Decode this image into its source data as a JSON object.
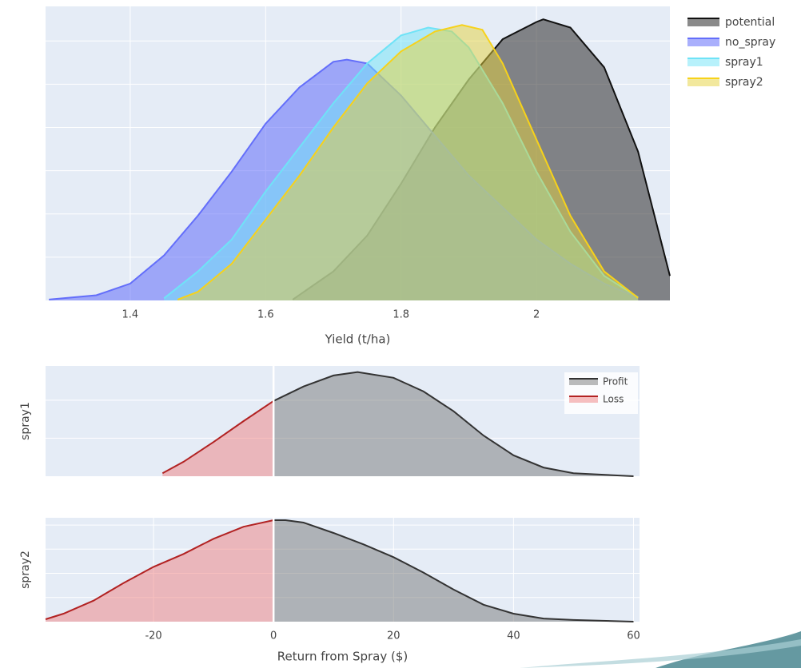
{
  "chart_data": [
    {
      "type": "area",
      "xlabel": "Yield (t/ha)",
      "xlim": [
        1.275,
        2.197
      ],
      "xticks": [
        1.4,
        1.6,
        1.8,
        2
      ],
      "ylim": [
        0,
        6.8
      ],
      "yticks": [
        1,
        2,
        3,
        4,
        5,
        6
      ],
      "ytick_labels": false,
      "grid": true,
      "legend": "outside-right",
      "series": [
        {
          "name": "potential",
          "color": "#111111",
          "fill": "rgba(60,60,60,0.6)",
          "x": [
            1.64,
            1.7,
            1.75,
            1.8,
            1.85,
            1.9,
            1.95,
            2.0,
            2.01,
            2.05,
            2.1,
            2.15,
            2.197
          ],
          "values": [
            0.02,
            0.67,
            1.5,
            2.7,
            4.0,
            5.11,
            6.04,
            6.44,
            6.5,
            6.31,
            5.39,
            3.44,
            0.57
          ]
        },
        {
          "name": "no_spray",
          "color": "#636efa",
          "fill": "rgba(99,110,250,0.55)",
          "x": [
            1.28,
            1.35,
            1.4,
            1.45,
            1.5,
            1.55,
            1.6,
            1.65,
            1.7,
            1.72,
            1.75,
            1.8,
            1.85,
            1.9,
            1.95,
            2.0,
            2.05,
            2.1,
            2.15
          ],
          "values": [
            0.02,
            0.12,
            0.39,
            1.04,
            1.96,
            2.98,
            4.09,
            4.93,
            5.52,
            5.57,
            5.48,
            4.74,
            3.81,
            2.89,
            2.15,
            1.41,
            0.85,
            0.39,
            0.07
          ]
        },
        {
          "name": "spray1",
          "color": "#6fe3f7",
          "fill": "rgba(111,227,247,0.5)",
          "x": [
            1.45,
            1.5,
            1.55,
            1.6,
            1.65,
            1.7,
            1.75,
            1.8,
            1.84,
            1.875,
            1.9,
            1.95,
            2.0,
            2.05,
            2.1,
            2.15
          ],
          "values": [
            0.05,
            0.67,
            1.41,
            2.52,
            3.54,
            4.56,
            5.48,
            6.13,
            6.31,
            6.22,
            5.85,
            4.56,
            2.98,
            1.59,
            0.57,
            0.07
          ]
        },
        {
          "name": "spray2",
          "color": "#f7d21a",
          "fill": "rgba(230,210,60,0.5)",
          "x": [
            1.47,
            1.5,
            1.55,
            1.6,
            1.65,
            1.7,
            1.75,
            1.8,
            1.85,
            1.89,
            1.92,
            1.95,
            2.0,
            2.05,
            2.1,
            2.15
          ],
          "values": [
            0.02,
            0.2,
            0.85,
            1.87,
            2.89,
            4.0,
            5.02,
            5.76,
            6.22,
            6.37,
            6.26,
            5.48,
            3.72,
            1.96,
            0.67,
            0.06
          ]
        }
      ]
    },
    {
      "type": "area",
      "ylabel": "spray1",
      "xlim": [
        -38,
        61
      ],
      "ylim": [
        0,
        2.9
      ],
      "yticks": [
        1,
        2
      ],
      "ytick_labels": false,
      "grid": true,
      "zeroline": true,
      "legend": "top-right",
      "series": [
        {
          "name": "Profit",
          "color": "#333333",
          "fill": "rgba(120,120,120,0.5)",
          "x": [
            0,
            5,
            10,
            14,
            20,
            25,
            30,
            35,
            40,
            45,
            50,
            55,
            60
          ],
          "values": [
            1.98,
            2.36,
            2.65,
            2.74,
            2.59,
            2.23,
            1.71,
            1.07,
            0.55,
            0.23,
            0.08,
            0.04,
            0
          ]
        },
        {
          "name": "Loss",
          "color": "#b22222",
          "fill": "rgba(240,128,128,0.5)",
          "x": [
            -18.5,
            -15,
            -10,
            -5,
            0
          ],
          "values": [
            0.08,
            0.38,
            0.9,
            1.45,
            1.98
          ]
        }
      ]
    },
    {
      "type": "area",
      "ylabel": "spray2",
      "xlabel": "Return from Spray ($)",
      "xlim": [
        -38,
        61
      ],
      "xticks": [
        -20,
        0,
        20,
        40,
        60
      ],
      "ylim": [
        0,
        4.3
      ],
      "yticks": [
        1,
        2,
        3,
        4
      ],
      "ytick_labels": false,
      "grid": true,
      "zeroline": true,
      "showlegend": false,
      "series": [
        {
          "name": "Profit",
          "color": "#333333",
          "fill": "rgba(120,120,120,0.5)",
          "x": [
            0,
            2,
            5,
            10,
            15,
            20,
            25,
            30,
            35,
            40,
            45,
            50,
            60
          ],
          "values": [
            4.2,
            4.2,
            4.1,
            3.67,
            3.2,
            2.67,
            2.03,
            1.33,
            0.7,
            0.33,
            0.13,
            0.07,
            0
          ]
        },
        {
          "name": "Loss",
          "color": "#b22222",
          "fill": "rgba(240,128,128,0.5)",
          "x": [
            -38,
            -35,
            -30,
            -25,
            -20,
            -15,
            -10,
            -5,
            0
          ],
          "values": [
            0.1,
            0.33,
            0.87,
            1.6,
            2.27,
            2.8,
            3.43,
            3.93,
            4.2
          ]
        }
      ]
    }
  ]
}
